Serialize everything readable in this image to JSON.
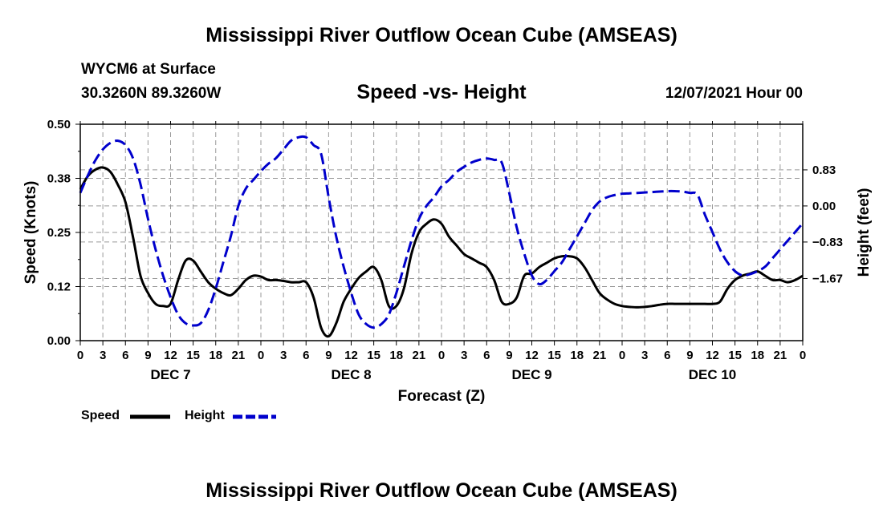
{
  "header": {
    "title": "Mississippi River Outflow Ocean Cube (AMSEAS)",
    "station": "WYCM6 at Surface",
    "coordinates": "30.3260N  89.3260W",
    "subtitle": "Speed -vs- Height",
    "datetime": "12/07/2021 Hour 00"
  },
  "footer": {
    "title": "Mississippi River Outflow Ocean Cube (AMSEAS)"
  },
  "colors": {
    "speed": "#000000",
    "height": "#0000cc",
    "grid": "#999999"
  },
  "chart_data": {
    "type": "line",
    "xlabel": "Forecast (Z)",
    "ylabel_left": "Speed (Knots)",
    "ylabel_right": "Height (feet)",
    "x_range_hours": [
      0,
      96
    ],
    "x_tick_step_hours": 3,
    "x_tick_labels": [
      "0",
      "3",
      "6",
      "9",
      "12",
      "15",
      "18",
      "21",
      "0",
      "3",
      "6",
      "9",
      "12",
      "15",
      "18",
      "21",
      "0",
      "3",
      "6",
      "9",
      "12",
      "15",
      "18",
      "21",
      "0",
      "3",
      "6",
      "9",
      "12",
      "15",
      "18",
      "21",
      "0"
    ],
    "day_labels": [
      {
        "label": "DEC 7",
        "hour": 12
      },
      {
        "label": "DEC 8",
        "hour": 36
      },
      {
        "label": "DEC 9",
        "hour": 60
      },
      {
        "label": "DEC 10",
        "hour": 84
      }
    ],
    "y_left": {
      "ylim": [
        0,
        0.5
      ],
      "ticks": [
        "0.00",
        "0.12",
        "0.25",
        "0.38",
        "0.50"
      ],
      "tick_values": [
        0,
        0.125,
        0.25,
        0.375,
        0.5
      ]
    },
    "y_right": {
      "ylim": [
        -3.1,
        1.88
      ],
      "ticks": [
        "0.83",
        "0.00",
        "−0.83",
        "−1.67"
      ],
      "tick_values": [
        0.83,
        0,
        -0.83,
        -1.67
      ]
    },
    "legend": [
      "Speed",
      "Height"
    ],
    "series": [
      {
        "name": "Speed",
        "axis": "left",
        "x": [
          0,
          1,
          2,
          3,
          4,
          5,
          6,
          7,
          8,
          9,
          10,
          11,
          12,
          13,
          14,
          15,
          16,
          17,
          18,
          19,
          20,
          21,
          22,
          23,
          24,
          25,
          26,
          27,
          28,
          29,
          30,
          31,
          32,
          33,
          34,
          35,
          36,
          37,
          38,
          39,
          40,
          41,
          42,
          43,
          44,
          45,
          46,
          47,
          48,
          49,
          50,
          51,
          52,
          53,
          54,
          55,
          56,
          57,
          58,
          59,
          60,
          61,
          62,
          63,
          64,
          65,
          66,
          67,
          68,
          69,
          70,
          71,
          72,
          73,
          74,
          75,
          76,
          77,
          78,
          79,
          80,
          81,
          82,
          83,
          84,
          85,
          86,
          87,
          88,
          89,
          90,
          91,
          92,
          93,
          94,
          95,
          96
        ],
        "values": [
          0.35,
          0.38,
          0.395,
          0.4,
          0.39,
          0.36,
          0.32,
          0.24,
          0.15,
          0.11,
          0.085,
          0.08,
          0.085,
          0.14,
          0.185,
          0.185,
          0.16,
          0.135,
          0.12,
          0.11,
          0.105,
          0.12,
          0.14,
          0.15,
          0.148,
          0.14,
          0.14,
          0.138,
          0.135,
          0.135,
          0.135,
          0.1,
          0.03,
          0.01,
          0.04,
          0.09,
          0.12,
          0.145,
          0.16,
          0.17,
          0.14,
          0.08,
          0.08,
          0.12,
          0.2,
          0.25,
          0.27,
          0.28,
          0.27,
          0.24,
          0.22,
          0.2,
          0.19,
          0.18,
          0.17,
          0.14,
          0.09,
          0.085,
          0.1,
          0.15,
          0.155,
          0.17,
          0.18,
          0.19,
          0.195,
          0.195,
          0.19,
          0.17,
          0.14,
          0.11,
          0.095,
          0.085,
          0.08,
          0.078,
          0.077,
          0.078,
          0.08,
          0.083,
          0.085,
          0.085,
          0.085,
          0.085,
          0.085,
          0.085,
          0.085,
          0.09,
          0.12,
          0.14,
          0.15,
          0.155,
          0.16,
          0.15,
          0.14,
          0.14,
          0.135,
          0.14,
          0.15
        ]
      },
      {
        "name": "Height",
        "axis": "right",
        "x": [
          0,
          1,
          2,
          3,
          4,
          5,
          6,
          7,
          8,
          9,
          10,
          11,
          12,
          13,
          14,
          15,
          16,
          17,
          18,
          19,
          20,
          21,
          22,
          23,
          24,
          25,
          26,
          27,
          28,
          29,
          30,
          31,
          32,
          33,
          34,
          35,
          36,
          37,
          38,
          39,
          40,
          41,
          42,
          43,
          44,
          45,
          46,
          47,
          48,
          49,
          50,
          51,
          52,
          53,
          54,
          55,
          56,
          57,
          58,
          59,
          60,
          61,
          62,
          63,
          64,
          65,
          66,
          67,
          68,
          69,
          70,
          71,
          72,
          73,
          74,
          75,
          76,
          77,
          78,
          79,
          80,
          81,
          82,
          83,
          84,
          85,
          86,
          87,
          88,
          89,
          90,
          91,
          92,
          93,
          94,
          95,
          96
        ],
        "values": [
          0.3,
          0.7,
          1.05,
          1.3,
          1.45,
          1.5,
          1.4,
          1.1,
          0.5,
          -0.3,
          -1.0,
          -1.6,
          -2.1,
          -2.5,
          -2.7,
          -2.75,
          -2.7,
          -2.4,
          -1.9,
          -1.3,
          -0.7,
          0.0,
          0.4,
          0.6,
          0.8,
          0.97,
          1.1,
          1.3,
          1.5,
          1.58,
          1.58,
          1.4,
          1.2,
          0.2,
          -0.7,
          -1.4,
          -2.0,
          -2.5,
          -2.72,
          -2.8,
          -2.72,
          -2.5,
          -2.0,
          -1.4,
          -0.8,
          -0.3,
          0.0,
          0.2,
          0.45,
          0.6,
          0.78,
          0.9,
          1.0,
          1.06,
          1.09,
          1.06,
          1.0,
          0.3,
          -0.5,
          -1.1,
          -1.6,
          -1.8,
          -1.7,
          -1.5,
          -1.3,
          -1.0,
          -0.7,
          -0.4,
          -0.1,
          0.1,
          0.2,
          0.25,
          0.28,
          0.29,
          0.3,
          0.31,
          0.32,
          0.33,
          0.34,
          0.34,
          0.33,
          0.3,
          0.26,
          -0.2,
          -0.6,
          -1.0,
          -1.3,
          -1.5,
          -1.6,
          -1.57,
          -1.5,
          -1.4,
          -1.2,
          -1.0,
          -0.8,
          -0.6,
          -0.4
        ]
      }
    ]
  }
}
